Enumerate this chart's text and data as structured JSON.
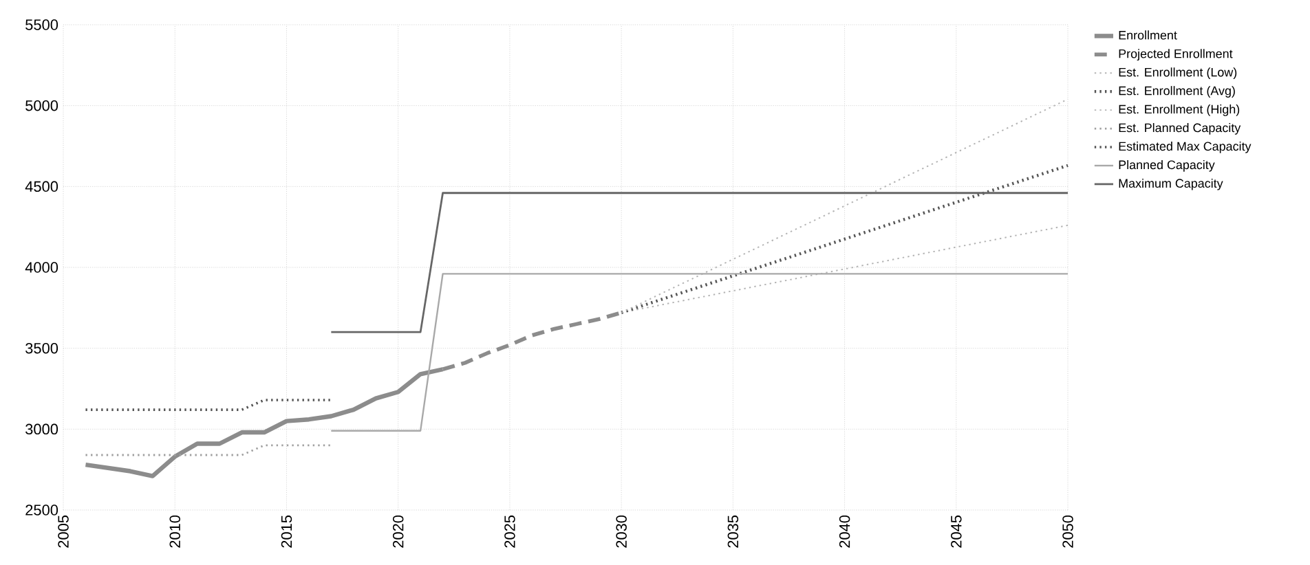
{
  "chart_data": {
    "type": "line",
    "x": [
      2006,
      2007,
      2008,
      2009,
      2010,
      2011,
      2012,
      2013,
      2014,
      2015,
      2016,
      2017,
      2018,
      2019,
      2020,
      2021,
      2022
    ],
    "series": [
      {
        "name": "Enrollment",
        "color": "#8c8c8c",
        "line_style": "solid",
        "values": [
          2780,
          2760,
          2740,
          2710,
          2830,
          2910,
          2910,
          2980,
          2980,
          3050,
          3060,
          3080,
          3120,
          3190,
          3230,
          3340,
          3370
        ]
      },
      {
        "name": "Projected Enrollment",
        "color": "#8c8c8c",
        "line_style": "dashed",
        "x": [
          2022,
          2023,
          2024,
          2025,
          2026,
          2027,
          2028,
          2029,
          2030
        ],
        "values": [
          3370,
          3410,
          3470,
          3520,
          3580,
          3620,
          3650,
          3680,
          3720
        ]
      },
      {
        "name": "Est. Enrollment (Low)",
        "color": "#b4b4b4",
        "line_style": "dotted",
        "x": [
          2030,
          2050
        ],
        "values": [
          3720,
          4260
        ]
      },
      {
        "name": "Est. Enrollment (Avg)",
        "color": "#555555",
        "line_style": "dotted",
        "x": [
          2030,
          2050
        ],
        "values": [
          3720,
          4630
        ]
      },
      {
        "name": "Est. Enrollment (High)",
        "color": "#b4b4b4",
        "line_style": "dotted",
        "x": [
          2030,
          2050
        ],
        "values": [
          3720,
          5040
        ]
      },
      {
        "name": "Est. Planned Capacity",
        "color": "#a0a0a0",
        "line_style": "dotted",
        "x": [
          2006,
          2013,
          2014,
          2017
        ],
        "values": [
          2840,
          2840,
          2900,
          2900
        ]
      },
      {
        "name": "Estimated Max Capacity",
        "color": "#555555",
        "line_style": "dotted",
        "x": [
          2006,
          2013,
          2014,
          2017
        ],
        "values": [
          3120,
          3120,
          3180,
          3180
        ]
      },
      {
        "name": "Planned Capacity",
        "color": "#a8a8a8",
        "line_style": "solid",
        "x": [
          2017,
          2021,
          2022,
          2050
        ],
        "values": [
          2990,
          2990,
          3960,
          3960
        ]
      },
      {
        "name": "Maximum Capacity",
        "color": "#666666",
        "line_style": "solid",
        "x": [
          2017,
          2021,
          2022,
          2050
        ],
        "values": [
          3600,
          3600,
          4460,
          4460
        ]
      }
    ],
    "xlim": [
      2005,
      2050
    ],
    "ylim": [
      2500,
      5500
    ],
    "xticks": [
      2005,
      2010,
      2015,
      2020,
      2025,
      2030,
      2035,
      2040,
      2045,
      2050
    ],
    "yticks": [
      2500,
      3000,
      3500,
      4000,
      4500,
      5000,
      5500
    ],
    "grid": true,
    "legend": "right",
    "marker": "none"
  }
}
